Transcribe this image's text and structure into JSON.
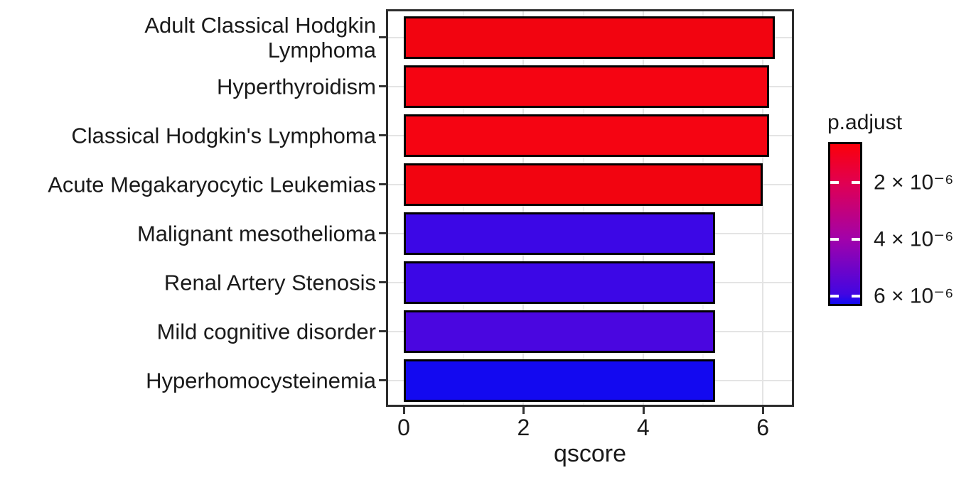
{
  "figure": {
    "background": "#ffffff",
    "text_color": "#1a1a1a"
  },
  "chart_data": {
    "type": "bar",
    "orientation": "horizontal",
    "title": "",
    "xlabel": "qscore",
    "ylabel": "",
    "xlim": [
      0,
      6.5
    ],
    "xticks": [
      0,
      2,
      4,
      6
    ],
    "xticks_minor": [
      1,
      3,
      5
    ],
    "grid": true,
    "categories": [
      "Adult Classical Hodgkin\nLymphoma",
      "Hyperthyroidism",
      "Classical Hodgkin's Lymphoma",
      "Acute Megakaryocytic Leukemias",
      "Malignant mesothelioma",
      "Renal Artery Stenosis",
      "Mild cognitive disorder",
      "Hyperhomocysteinemia"
    ],
    "values": [
      6.2,
      6.1,
      6.1,
      6.0,
      5.2,
      5.2,
      5.2,
      5.2
    ],
    "bar_colors": [
      "#f20410",
      "#f50412",
      "#f50412",
      "#f20410",
      "#3c07e6",
      "#3c07e6",
      "#4a06e0",
      "#1309f0"
    ],
    "bar_border_color": "#000000",
    "legend_position": "right"
  },
  "legend": {
    "title": "p.adjust",
    "ticks": [
      {
        "label": "2 × 10⁻⁶",
        "pos": 0.247
      },
      {
        "label": "4 × 10⁻⁶",
        "pos": 0.593
      },
      {
        "label": "6 × 10⁻⁶",
        "pos": 0.939
      }
    ],
    "gradient_stops": [
      {
        "color": "#fb000a",
        "at": 0
      },
      {
        "color": "#e00053",
        "at": 0.247
      },
      {
        "color": "#a202aa",
        "at": 0.593
      },
      {
        "color": "#4206e2",
        "at": 0.939
      },
      {
        "color": "#120bf2",
        "at": 1
      }
    ]
  },
  "colors": {
    "panel_border": "#2d2d2d",
    "grid_major": "#e4e4e4",
    "grid_minor": "#f3f3f3",
    "axis_tick": "#333333"
  }
}
